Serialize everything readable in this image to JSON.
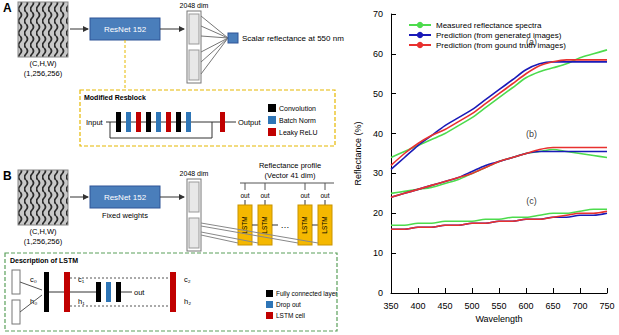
{
  "diagram": {
    "panel_a": {
      "label": "A",
      "input": [
        "(C,H,W)",
        "(1,256,256)"
      ],
      "network": "ResNet 152",
      "feature": "2048 dim",
      "output": "Scalar reflectance at 550 nm",
      "inset": {
        "title": "Modified Resblock",
        "input": "Input",
        "output": "Output",
        "legend": [
          {
            "label": "Convolution",
            "color": "#000000"
          },
          {
            "label": "Batch Norm",
            "color": "#2e75b6"
          },
          {
            "label": "Leaky ReLU",
            "color": "#c00000"
          }
        ]
      }
    },
    "panel_b": {
      "label": "B",
      "input": [
        "(C,H,W)",
        "(1,256,256)"
      ],
      "network": "ResNet 152",
      "network_note": "Fixed weights",
      "feature": "2048 dim",
      "output": [
        "Reflectance profile",
        "(Vector 41 dim)"
      ],
      "cells": [
        "LSTM",
        "LSTM",
        "…",
        "LSTM",
        "LSTM"
      ],
      "cell_output": "out",
      "inset": {
        "title": "Description of LSTM",
        "states": [
          [
            "c₀",
            "h₀"
          ],
          [
            "c₁",
            "h₁"
          ],
          [
            "c₂",
            "h₂"
          ]
        ],
        "output": "out",
        "legend": [
          {
            "label": "Fully connected layer",
            "color": "#000000"
          },
          {
            "label": "Drop out",
            "color": "#2e75b6"
          },
          {
            "label": "LSTM cell",
            "color": "#c00000"
          }
        ]
      }
    }
  },
  "chart_data": {
    "type": "line",
    "xlabel": "Wavelength",
    "ylabel": "Reflectance (%)",
    "x": [
      350,
      375,
      400,
      425,
      450,
      475,
      500,
      525,
      550,
      575,
      600,
      625,
      650,
      675,
      700,
      725,
      750
    ],
    "xlim": [
      350,
      750
    ],
    "xticks": [
      350,
      400,
      450,
      500,
      550,
      600,
      650,
      700,
      750
    ],
    "ylim": [
      0,
      70
    ],
    "yticks": [
      0,
      10,
      20,
      30,
      40,
      50,
      60,
      70
    ],
    "grid": false,
    "legend": "upper left",
    "line_style": "solid",
    "marker": "none",
    "series": [
      {
        "name": "Measured reflectance spectra",
        "color": "#4ddb4d",
        "values": [
          34,
          35.5,
          37,
          38.5,
          40,
          42,
          44,
          46.5,
          49,
          51.5,
          54,
          55.5,
          56.5,
          57.5,
          59,
          60,
          61
        ]
      },
      {
        "name": "Prediction (from generated images)",
        "color": "#1a1ab8",
        "values": [
          31,
          34,
          37,
          39.5,
          42,
          44,
          46,
          48.5,
          51,
          53.5,
          56,
          57.5,
          58,
          58,
          58,
          58,
          58
        ]
      },
      {
        "name": "Prediction (from gound truth images)",
        "color": "#e8312f",
        "values": [
          32,
          35,
          37.5,
          39.5,
          41,
          43,
          45,
          47.5,
          50,
          52.5,
          55,
          57,
          58,
          58.5,
          58.5,
          58.5,
          58.5
        ]
      },
      {
        "name": "Measured reflectance spectra",
        "color": "#4ddb4d",
        "values": [
          25,
          25.5,
          26,
          26.5,
          27.5,
          28.5,
          30,
          31.5,
          33,
          34,
          35,
          35.5,
          36,
          35.5,
          35,
          34.5,
          34
        ]
      },
      {
        "name": "Prediction (from generated images)",
        "color": "#1a1ab8",
        "values": [
          24,
          25,
          26,
          27,
          28,
          29,
          30.5,
          32,
          33,
          34,
          35,
          35.5,
          35.5,
          35.5,
          35.5,
          35.5,
          35.5
        ]
      },
      {
        "name": "Prediction (from gound truth images)",
        "color": "#e8312f",
        "values": [
          24,
          25,
          26,
          27,
          28,
          29,
          30,
          31.5,
          33,
          34,
          35,
          36,
          36.5,
          36.5,
          36.5,
          36.5,
          36.5
        ]
      },
      {
        "name": "Measured reflectance spectra",
        "color": "#4ddb4d",
        "values": [
          17,
          17,
          17.5,
          17.5,
          18,
          18,
          18,
          18.5,
          18.5,
          19,
          19,
          19.5,
          20,
          20,
          20.5,
          21,
          21
        ]
      },
      {
        "name": "Prediction (from generated images)",
        "color": "#1a1ab8",
        "values": [
          16,
          16,
          16.5,
          16.5,
          17,
          17,
          17.5,
          17.5,
          18,
          18,
          18.5,
          18.5,
          19,
          19,
          19.5,
          19.5,
          20
        ]
      },
      {
        "name": "Prediction (from gound truth images)",
        "color": "#e8312f",
        "values": [
          16,
          16,
          16.5,
          16.5,
          17,
          17,
          17.5,
          17.5,
          18,
          18,
          18.5,
          18.5,
          19,
          19.5,
          20,
          20,
          20.5
        ]
      }
    ],
    "annotations": [
      {
        "text": "(a)",
        "x": 610,
        "y": 63
      },
      {
        "text": "(b)",
        "x": 610,
        "y": 40
      },
      {
        "text": "(c)",
        "x": 610,
        "y": 23
      }
    ]
  }
}
